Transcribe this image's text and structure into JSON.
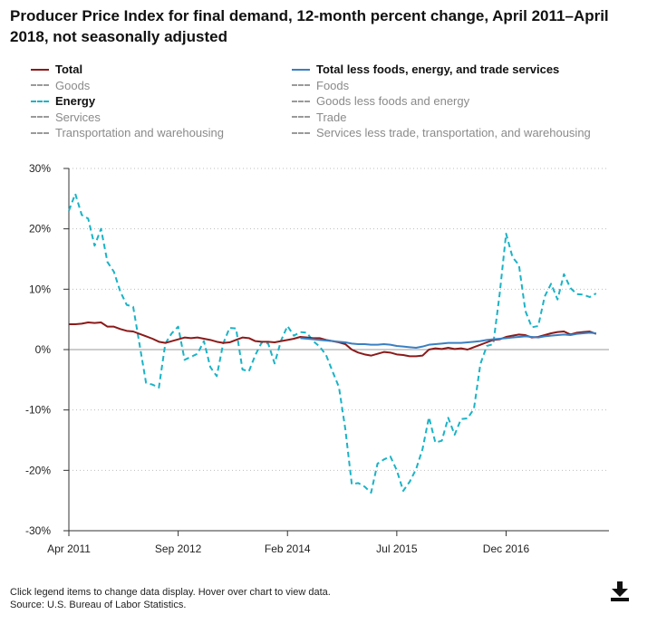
{
  "title": "Producer Price Index for final demand, 12-month percent change, April 2011–April 2018, not seasonally adjusted",
  "legend": [
    {
      "label": "Total",
      "color": "#8b1a1a",
      "style": "solid",
      "active": true
    },
    {
      "label": "Total less foods, energy, and trade services",
      "color": "#3a7fc1",
      "style": "solid",
      "active": true
    },
    {
      "label": "Goods",
      "color": "#9a9a9a",
      "style": "dashed",
      "active": false
    },
    {
      "label": "Foods",
      "color": "#9a9a9a",
      "style": "dashed",
      "active": false
    },
    {
      "label": "Energy",
      "color": "#1ab3c6",
      "style": "dashed",
      "active": true
    },
    {
      "label": "Goods less foods and energy",
      "color": "#9a9a9a",
      "style": "dashed",
      "active": false
    },
    {
      "label": "Services",
      "color": "#9a9a9a",
      "style": "dashed",
      "active": false
    },
    {
      "label": "Trade",
      "color": "#9a9a9a",
      "style": "dashed",
      "active": false
    },
    {
      "label": "Transportation and warehousing",
      "color": "#9a9a9a",
      "style": "dashed",
      "active": false
    },
    {
      "label": "Services less trade, transportation, and warehousing",
      "color": "#9a9a9a",
      "style": "dashed",
      "active": false
    }
  ],
  "footer": {
    "note": "Click legend items to change data display. Hover over chart to view data.",
    "source": "Source: U.S. Bureau of Labor Statistics."
  },
  "download_icon": "download-icon",
  "chart_data": {
    "type": "line",
    "title": "Producer Price Index for final demand, 12-month percent change, April 2011–April 2018, not seasonally adjusted",
    "x_start": "Apr 2011",
    "x_end": "Apr 2018",
    "x_ticks": [
      {
        "label": "Apr 2011",
        "index": 0
      },
      {
        "label": "Sep 2012",
        "index": 17
      },
      {
        "label": "Feb 2014",
        "index": 34
      },
      {
        "label": "Jul 2015",
        "index": 51
      },
      {
        "label": "Dec 2016",
        "index": 68
      }
    ],
    "y_ticks": [
      {
        "value": 30,
        "label": "30%"
      },
      {
        "value": 20,
        "label": "20%"
      },
      {
        "value": 10,
        "label": "10%"
      },
      {
        "value": 0,
        "label": "0%"
      },
      {
        "value": -10,
        "label": "-10%"
      },
      {
        "value": -20,
        "label": "-20%"
      },
      {
        "value": -30,
        "label": "-30%"
      }
    ],
    "ylim": [
      -30,
      30
    ],
    "series": [
      {
        "name": "Energy",
        "color": "#1ab3c6",
        "dashed": true,
        "values": [
          23.0,
          25.8,
          22.3,
          21.7,
          17.2,
          20.0,
          14.5,
          12.9,
          9.6,
          7.4,
          7.1,
          0.8,
          -5.5,
          -5.8,
          -6.3,
          1.0,
          2.7,
          3.8,
          -1.7,
          -1.2,
          -0.7,
          1.4,
          -2.9,
          -4.4,
          1.0,
          3.6,
          3.5,
          -3.3,
          -3.6,
          -0.9,
          1.2,
          1.0,
          -2.3,
          1.5,
          3.9,
          2.3,
          2.9,
          2.8,
          1.4,
          0.5,
          -0.9,
          -3.6,
          -6.2,
          -13.2,
          -22.3,
          -22.1,
          -22.7,
          -23.7,
          -18.9,
          -18.2,
          -17.7,
          -20.0,
          -23.4,
          -21.9,
          -19.8,
          -16.5,
          -11.2,
          -15.4,
          -15.1,
          -11.3,
          -14.1,
          -11.5,
          -11.4,
          -9.8,
          -2.4,
          0.6,
          0.9,
          9.2,
          19.2,
          15.3,
          14.0,
          6.4,
          3.7,
          3.9,
          8.8,
          10.9,
          8.3,
          12.5,
          10.2,
          9.2,
          9.1,
          8.7,
          9.3
        ]
      },
      {
        "name": "Total",
        "color": "#8b1a1a",
        "dashed": false,
        "values": [
          4.2,
          4.2,
          4.3,
          4.5,
          4.4,
          4.5,
          3.8,
          3.8,
          3.4,
          3.1,
          3.0,
          2.6,
          2.2,
          1.8,
          1.3,
          1.1,
          1.4,
          1.7,
          2.0,
          1.9,
          2.0,
          1.8,
          1.6,
          1.3,
          1.1,
          1.2,
          1.6,
          2.0,
          1.9,
          1.4,
          1.3,
          1.3,
          1.2,
          1.4,
          1.6,
          1.8,
          2.1,
          2.0,
          1.9,
          1.9,
          1.6,
          1.4,
          1.2,
          0.9,
          0.0,
          -0.5,
          -0.8,
          -1.0,
          -0.7,
          -0.4,
          -0.5,
          -0.8,
          -0.9,
          -1.1,
          -1.1,
          -1.0,
          0.0,
          0.2,
          0.1,
          0.3,
          0.1,
          0.2,
          0.0,
          0.4,
          0.8,
          1.2,
          1.6,
          1.7,
          2.1,
          2.3,
          2.5,
          2.4,
          2.0,
          2.1,
          2.4,
          2.7,
          2.9,
          3.0,
          2.5,
          2.8,
          2.9,
          3.0,
          2.6
        ]
      },
      {
        "name": "Total less foods, energy, and trade services",
        "color": "#3a7fc1",
        "dashed": false,
        "values": [
          null,
          null,
          null,
          null,
          null,
          null,
          null,
          null,
          null,
          null,
          null,
          null,
          null,
          null,
          null,
          null,
          null,
          null,
          null,
          null,
          null,
          null,
          null,
          null,
          null,
          null,
          null,
          null,
          null,
          null,
          null,
          null,
          null,
          null,
          null,
          null,
          1.9,
          1.8,
          1.7,
          1.6,
          1.5,
          1.4,
          1.3,
          1.2,
          1.0,
          0.9,
          0.9,
          0.8,
          0.8,
          0.9,
          0.8,
          0.6,
          0.5,
          0.4,
          0.3,
          0.5,
          0.8,
          0.9,
          1.0,
          1.1,
          1.1,
          1.1,
          1.2,
          1.3,
          1.4,
          1.6,
          1.7,
          1.8,
          1.9,
          2.0,
          2.1,
          2.2,
          2.1,
          2.0,
          2.2,
          2.3,
          2.4,
          2.5,
          2.4,
          2.6,
          2.7,
          2.8,
          2.7
        ]
      }
    ]
  }
}
